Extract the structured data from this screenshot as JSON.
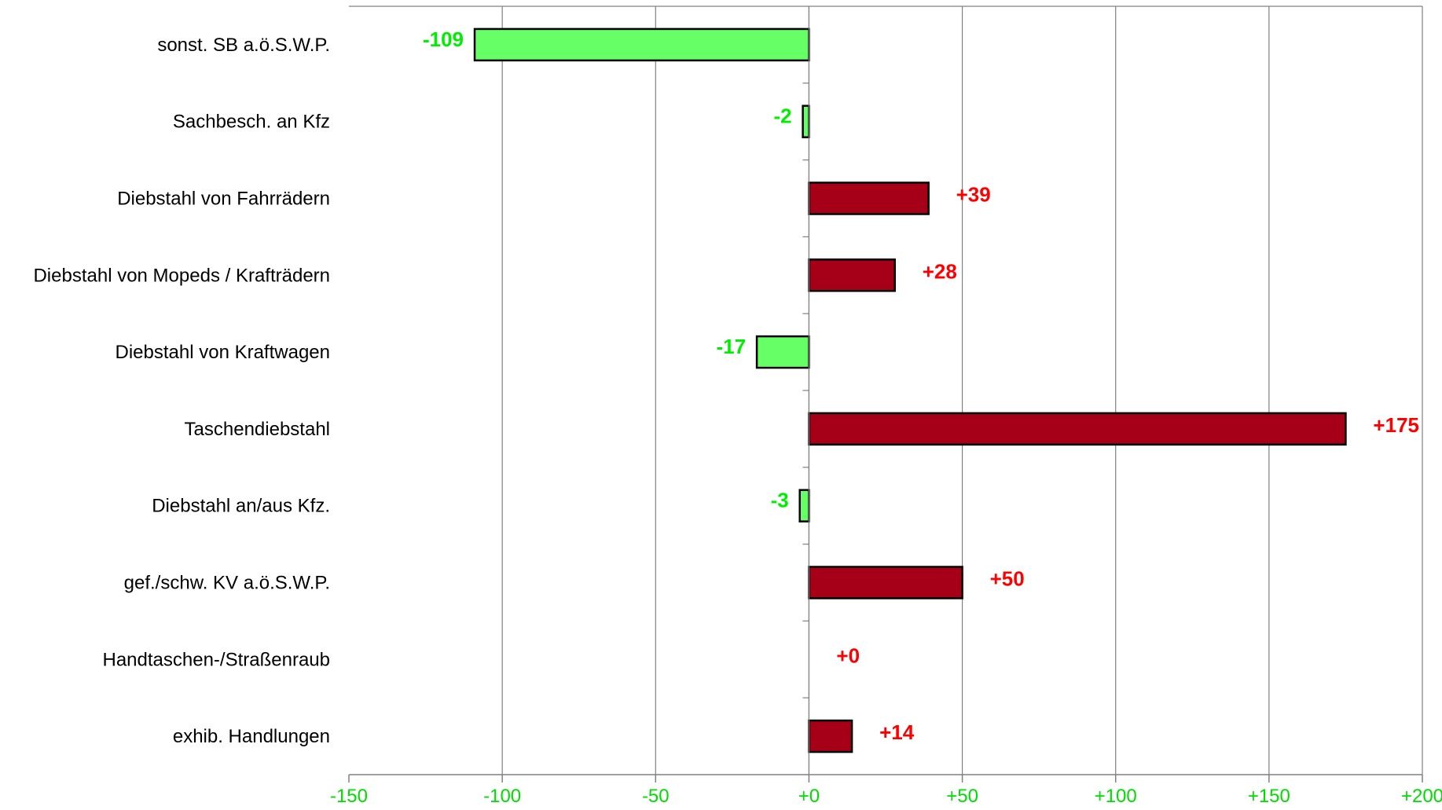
{
  "chart_data": {
    "type": "bar",
    "orientation": "horizontal",
    "categories": [
      "sonst. SB a.ö.S.W.P.",
      "Sachbesch. an Kfz",
      "Diebstahl von Fahrrädern",
      "Diebstahl von Mopeds / Krafträdern",
      "Diebstahl von Kraftwagen",
      "Taschendiebstahl",
      "Diebstahl an/aus Kfz.",
      "gef./schw. KV a.ö.S.W.P.",
      "Handtaschen-/Straßenraub",
      "exhib. Handlungen"
    ],
    "values": [
      -109,
      -2,
      39,
      28,
      -17,
      175,
      -3,
      50,
      0,
      14
    ],
    "value_labels": [
      "-109",
      "-2",
      "+39",
      "+28",
      "-17",
      "+175",
      "-3",
      "+50",
      "+0",
      "+14"
    ],
    "xlim": [
      -150,
      200
    ],
    "x_ticks": [
      -150,
      -100,
      -50,
      0,
      50,
      100,
      150,
      200
    ],
    "x_tick_labels": [
      "-150",
      "-100",
      "-50",
      "+0",
      "+50",
      "+100",
      "+150",
      "+200"
    ],
    "title": "",
    "xlabel": "",
    "ylabel": "",
    "grid": "vertical",
    "legend": "none",
    "colors": {
      "negative_bar": "#66ff66",
      "positive_bar": "#a50018",
      "negative_label": "#00ee00",
      "positive_label": "#ff0000",
      "tick_label": "#00dd00",
      "grid": "#808080",
      "axis": "#808080",
      "bar_outline": "#000000"
    }
  }
}
